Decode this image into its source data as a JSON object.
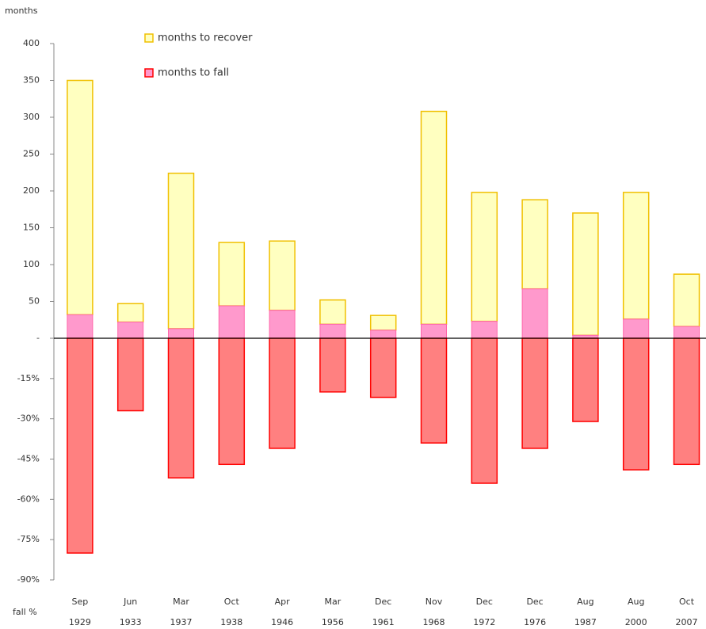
{
  "chart_data": {
    "type": "bar",
    "y_label": "months",
    "y2_label": "fall %",
    "categories": [
      [
        "Sep",
        "1929"
      ],
      [
        "Jun",
        "1933"
      ],
      [
        "Mar",
        "1937"
      ],
      [
        "Oct",
        "1938"
      ],
      [
        "Apr",
        "1946"
      ],
      [
        "Mar",
        "1956"
      ],
      [
        "Dec",
        "1961"
      ],
      [
        "Nov",
        "1968"
      ],
      [
        "Dec",
        "1972"
      ],
      [
        "Dec",
        "1976"
      ],
      [
        "Aug",
        "1987"
      ],
      [
        "Aug",
        "2000"
      ],
      [
        "Oct",
        "2007"
      ]
    ],
    "series": [
      {
        "name": "months to recover",
        "color": "#ffffc0",
        "edge": "#f0c000",
        "values": [
          318,
          25,
          211,
          86,
          94,
          33,
          20,
          289,
          175,
          121,
          166,
          172,
          71
        ]
      },
      {
        "name": "months to fall",
        "color": "#ff99cc",
        "edge": "#ff0000",
        "values": [
          32,
          22,
          13,
          44,
          38,
          19,
          11,
          19,
          23,
          67,
          4,
          26,
          16
        ]
      },
      {
        "axis": "y2",
        "color": "#ff8080",
        "edge": "#ff0000",
        "values": [
          -80,
          -27,
          -52,
          -47,
          -41,
          -20,
          -22,
          -39,
          -54,
          -41,
          -31,
          -49,
          -47
        ]
      }
    ],
    "ylim": [
      0,
      400
    ],
    "yticks": [
      {
        "value": 0,
        "label": "-"
      },
      50,
      100,
      150,
      200,
      250,
      300,
      350,
      400
    ],
    "y2lim": [
      -90,
      0
    ],
    "y2ticks": [
      {
        "value": -15,
        "label": "-15%"
      },
      {
        "value": -30,
        "label": "-30%"
      },
      {
        "value": -45,
        "label": "-45%"
      },
      {
        "value": -60,
        "label": "-60%"
      },
      {
        "value": -75,
        "label": "-75%"
      },
      {
        "value": -90,
        "label": "-90%"
      }
    ]
  }
}
